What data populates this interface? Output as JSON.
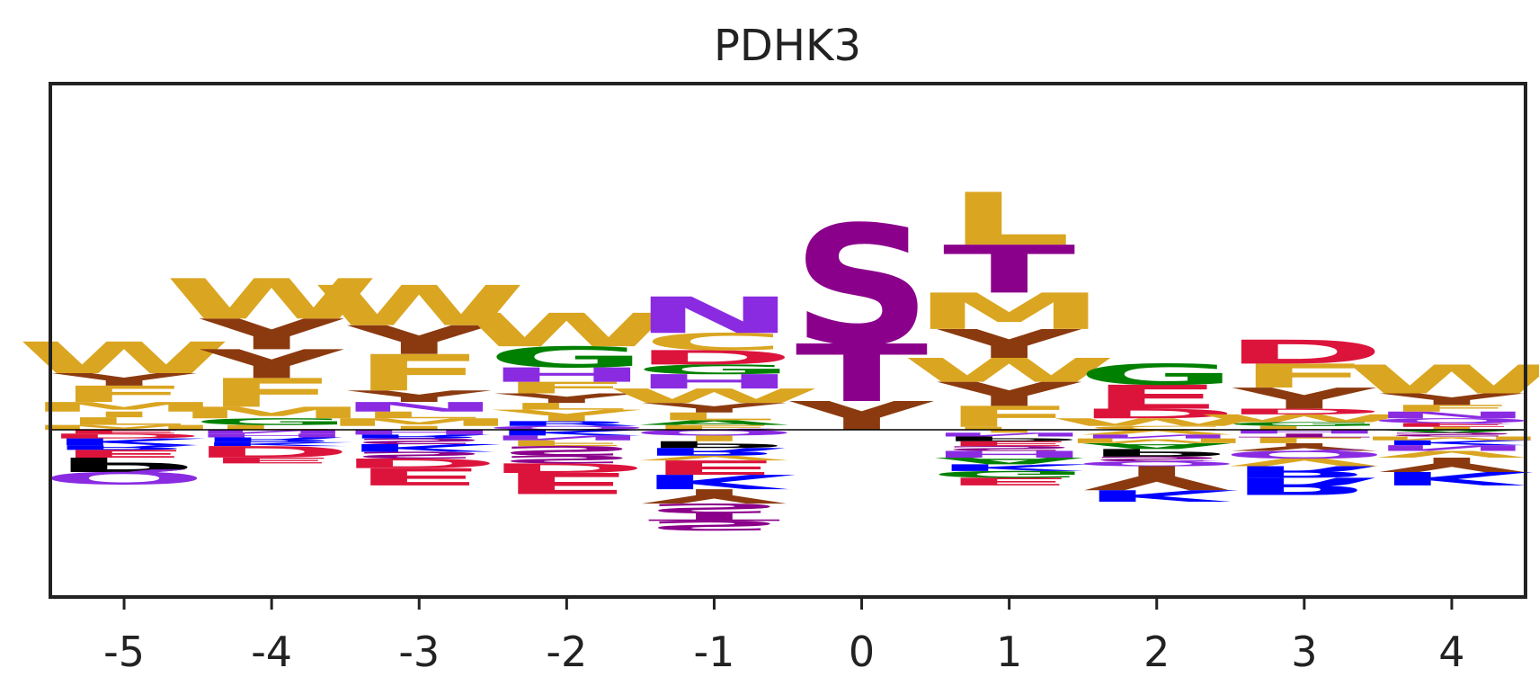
{
  "chart_data": {
    "type": "sequence-logo",
    "title": "PDHK3",
    "xlabel": "",
    "ylabel": "",
    "grid": false,
    "ylim": [
      -1.75,
      3.6
    ],
    "colors": {
      "S": "#8B008B",
      "T": "#8B008B",
      "Y": "#8B3A0F",
      "W": "#DAA520",
      "F": "#DAA520",
      "L": "#DAA520",
      "M": "#DAA520",
      "I": "#DAA520",
      "V": "#DAA520",
      "A": "#008000",
      "G": "#008000",
      "C": "#DAA520",
      "N": "#8A2BE2",
      "Q": "#8A2BE2",
      "H": "#8A2BE2",
      "D": "#DC143C",
      "E": "#DC143C",
      "K": "#0000FF",
      "R": "#0000FF",
      "P": "#000000"
    },
    "positions": [
      {
        "pos": "-5",
        "pos_stack": [
          [
            "M",
            0.05
          ],
          [
            "L",
            0.08
          ],
          [
            "I",
            0.06
          ],
          [
            "M",
            0.1
          ],
          [
            "F",
            0.17
          ],
          [
            "Y",
            0.13
          ],
          [
            "W",
            0.33
          ]
        ],
        "neg_stack": [
          [
            "E",
            0.04
          ],
          [
            "D",
            0.05
          ],
          [
            "K",
            0.07
          ],
          [
            "R",
            0.05
          ],
          [
            "E",
            0.08
          ],
          [
            "P",
            0.15
          ],
          [
            "Q",
            0.13
          ]
        ]
      },
      {
        "pos": "-4",
        "pos_stack": [
          [
            "L",
            0.05
          ],
          [
            "G",
            0.07
          ],
          [
            "M",
            0.12
          ],
          [
            "F",
            0.3
          ],
          [
            "Y",
            0.3
          ],
          [
            "Y",
            0.32
          ],
          [
            "W",
            0.42
          ]
        ],
        "neg_stack": [
          [
            "N",
            0.04
          ],
          [
            "H",
            0.04
          ],
          [
            "R",
            0.05
          ],
          [
            "K",
            0.04
          ],
          [
            "D",
            0.12
          ],
          [
            "E",
            0.06
          ]
        ]
      },
      {
        "pos": "-3",
        "pos_stack": [
          [
            "I",
            0.04
          ],
          [
            "M",
            0.08
          ],
          [
            "L",
            0.07
          ],
          [
            "N",
            0.1
          ],
          [
            "Y",
            0.12
          ],
          [
            "F",
            0.38
          ],
          [
            "Y",
            0.3
          ],
          [
            "W",
            0.42
          ]
        ],
        "neg_stack": [
          [
            "H",
            0.05
          ],
          [
            "R",
            0.04
          ],
          [
            "S",
            0.06
          ],
          [
            "K",
            0.08
          ],
          [
            "S",
            0.07
          ],
          [
            "D",
            0.1
          ],
          [
            "E",
            0.18
          ]
        ]
      },
      {
        "pos": "-2",
        "pos_stack": [
          [
            "Q",
            0.04
          ],
          [
            "R",
            0.05
          ],
          [
            "I",
            0.06
          ],
          [
            "V",
            0.06
          ],
          [
            "L",
            0.07
          ],
          [
            "Y",
            0.1
          ],
          [
            "F",
            0.12
          ],
          [
            "H",
            0.15
          ],
          [
            "G",
            0.22
          ],
          [
            "W",
            0.35
          ]
        ],
        "neg_stack": [
          [
            "K",
            0.06
          ],
          [
            "N",
            0.05
          ],
          [
            "F",
            0.06
          ],
          [
            "S",
            0.1
          ],
          [
            "S",
            0.08
          ],
          [
            "D",
            0.1
          ],
          [
            "E",
            0.22
          ]
        ]
      },
      {
        "pos": "-1",
        "pos_stack": [
          [
            "F",
            0.05
          ],
          [
            "A",
            0.05
          ],
          [
            "L",
            0.08
          ],
          [
            "Y",
            0.1
          ],
          [
            "W",
            0.15
          ],
          [
            "H",
            0.15
          ],
          [
            "G",
            0.1
          ],
          [
            "D",
            0.15
          ],
          [
            "C",
            0.18
          ],
          [
            "N",
            0.38
          ]
        ],
        "neg_stack": [
          [
            "Q",
            0.06
          ],
          [
            "I",
            0.06
          ],
          [
            "P",
            0.07
          ],
          [
            "R",
            0.08
          ],
          [
            "V",
            0.05
          ],
          [
            "E",
            0.15
          ],
          [
            "K",
            0.15
          ],
          [
            "Y",
            0.15
          ],
          [
            "S",
            0.1
          ],
          [
            "T",
            0.08
          ],
          [
            "S",
            0.1
          ]
        ]
      },
      {
        "pos": "0",
        "pos_stack": [
          [
            "Y",
            0.3
          ],
          [
            "T",
            0.6
          ],
          [
            "S",
            1.25
          ]
        ],
        "neg_stack": []
      },
      {
        "pos": "1",
        "pos_stack": [
          [
            "L",
            0.03
          ],
          [
            "F",
            0.22
          ],
          [
            "Y",
            0.25
          ],
          [
            "W",
            0.25
          ],
          [
            "Y",
            0.3
          ],
          [
            "M",
            0.38
          ],
          [
            "T",
            0.5
          ],
          [
            "L",
            0.55
          ]
        ],
        "neg_stack": [
          [
            "I",
            0.03
          ],
          [
            "N",
            0.04
          ],
          [
            "P",
            0.05
          ],
          [
            "E",
            0.05
          ],
          [
            "S",
            0.05
          ],
          [
            "H",
            0.07
          ],
          [
            "A",
            0.07
          ],
          [
            "K",
            0.07
          ],
          [
            "G",
            0.07
          ],
          [
            "E",
            0.08
          ]
        ]
      },
      {
        "pos": "2",
        "pos_stack": [
          [
            "C",
            0.04
          ],
          [
            "W",
            0.08
          ],
          [
            "D",
            0.1
          ],
          [
            "E",
            0.25
          ],
          [
            "G",
            0.22
          ]
        ],
        "neg_stack": [
          [
            "V",
            0.05
          ],
          [
            "N",
            0.04
          ],
          [
            "M",
            0.05
          ],
          [
            "A",
            0.06
          ],
          [
            "P",
            0.08
          ],
          [
            "S",
            0.05
          ],
          [
            "Q",
            0.05
          ],
          [
            "Y",
            0.25
          ],
          [
            "K",
            0.12
          ]
        ]
      },
      {
        "pos": "3",
        "pos_stack": [
          [
            "L",
            0.04
          ],
          [
            "G",
            0.04
          ],
          [
            "W",
            0.08
          ],
          [
            "D",
            0.06
          ],
          [
            "Y",
            0.22
          ],
          [
            "F",
            0.25
          ],
          [
            "D",
            0.25
          ]
        ],
        "neg_stack": [
          [
            "H",
            0.04
          ],
          [
            "T",
            0.04
          ],
          [
            "L",
            0.06
          ],
          [
            "Y",
            0.08
          ],
          [
            "Q",
            0.08
          ],
          [
            "V",
            0.08
          ],
          [
            "R",
            0.12
          ],
          [
            "R",
            0.18
          ]
        ]
      },
      {
        "pos": "4",
        "pos_stack": [
          [
            "I",
            0.03
          ],
          [
            "E",
            0.04
          ],
          [
            "Q",
            0.05
          ],
          [
            "N",
            0.07
          ],
          [
            "F",
            0.07
          ],
          [
            "Y",
            0.12
          ],
          [
            "W",
            0.3
          ]
        ],
        "neg_stack": [
          [
            "A",
            0.03
          ],
          [
            "S",
            0.04
          ],
          [
            "M",
            0.04
          ],
          [
            "K",
            0.05
          ],
          [
            "N",
            0.06
          ],
          [
            "V",
            0.07
          ],
          [
            "Y",
            0.15
          ],
          [
            "K",
            0.14
          ]
        ]
      }
    ]
  }
}
